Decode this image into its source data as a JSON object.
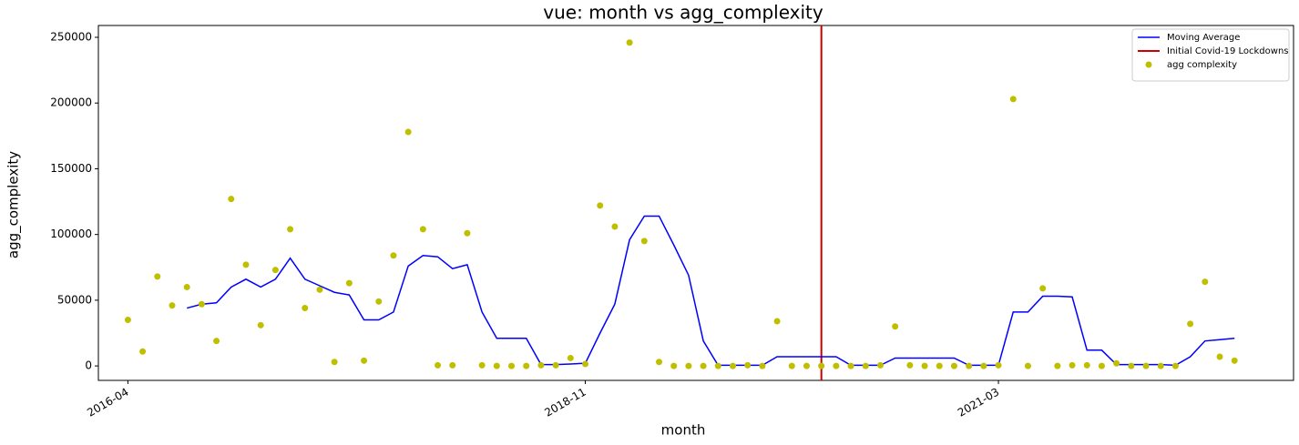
{
  "chart_data": {
    "type": "scatter",
    "title": "vue: month vs agg_complexity",
    "xlabel": "month",
    "ylabel": "agg_complexity",
    "x": [
      "2016-04",
      "2016-05",
      "2016-06",
      "2016-07",
      "2016-08",
      "2016-09",
      "2016-10",
      "2016-11",
      "2016-12",
      "2017-01",
      "2017-02",
      "2017-03",
      "2017-04",
      "2017-05",
      "2017-06",
      "2017-07",
      "2017-08",
      "2017-09",
      "2017-10",
      "2017-11",
      "2017-12",
      "2018-01",
      "2018-02",
      "2018-03",
      "2018-04",
      "2018-05",
      "2018-06",
      "2018-07",
      "2018-08",
      "2018-09",
      "2018-10",
      "2018-11",
      "2018-12",
      "2019-01",
      "2019-02",
      "2019-03",
      "2019-04",
      "2019-05",
      "2019-06",
      "2019-07",
      "2019-08",
      "2019-09",
      "2019-10",
      "2019-11",
      "2019-12",
      "2020-01",
      "2020-02",
      "2020-03",
      "2020-04",
      "2020-05",
      "2020-06",
      "2020-07",
      "2020-08",
      "2020-09",
      "2020-10",
      "2020-11",
      "2020-12",
      "2021-01",
      "2021-02",
      "2021-03",
      "2021-04",
      "2021-05",
      "2021-06",
      "2021-07",
      "2021-08",
      "2021-09",
      "2021-10",
      "2021-11",
      "2021-12",
      "2022-01",
      "2022-02",
      "2022-03",
      "2022-04",
      "2022-05",
      "2022-06",
      "2022-07"
    ],
    "series": [
      {
        "name": "Moving Average",
        "type": "line",
        "color": "#0000ff",
        "values": [
          null,
          null,
          null,
          null,
          44000,
          47000,
          48000,
          60000,
          66000,
          60000,
          66000,
          82000,
          66000,
          61000,
          56000,
          54000,
          35000,
          35000,
          41000,
          76000,
          84000,
          83000,
          74000,
          77000,
          41000,
          21000,
          21000,
          21000,
          1000,
          1000,
          1500,
          2000,
          25000,
          47000,
          96000,
          114000,
          114000,
          92000,
          69000,
          19000,
          500,
          500,
          500,
          500,
          7000,
          7000,
          7000,
          7000,
          7000,
          500,
          500,
          500,
          6000,
          6000,
          6000,
          6000,
          6000,
          500,
          500,
          500,
          41000,
          41000,
          53000,
          53000,
          52500,
          12000,
          12000,
          1000,
          1000,
          1000,
          1000,
          500,
          7000,
          19000,
          20000,
          21000
        ]
      },
      {
        "name": "agg complexity",
        "type": "scatter",
        "color": "#bfbf00",
        "values": [
          35000,
          11000,
          68000,
          46000,
          60000,
          47000,
          19000,
          127000,
          77000,
          31000,
          73000,
          104000,
          44000,
          58000,
          3000,
          63000,
          4000,
          49000,
          84000,
          178000,
          104000,
          500,
          500,
          101000,
          500,
          0,
          0,
          0,
          500,
          500,
          6000,
          1500,
          122000,
          106000,
          246000,
          95000,
          3000,
          0,
          0,
          0,
          0,
          0,
          500,
          0,
          34000,
          0,
          0,
          0,
          0,
          0,
          0,
          500,
          30000,
          500,
          0,
          0,
          0,
          0,
          0,
          500,
          203000,
          0,
          59000,
          0,
          500,
          500,
          0,
          2000,
          0,
          0,
          0,
          0,
          32000,
          64000,
          7000,
          4000
        ]
      }
    ],
    "vlines": [
      {
        "x": "2020-03",
        "name": "Initial Covid-19 Lockdowns",
        "color": "#cc0000"
      }
    ],
    "xlim": [
      "2016-02",
      "2022-11"
    ],
    "xticks": [
      "2016-04",
      "2018-11",
      "2021-03"
    ],
    "ylim": [
      -11000,
      259000
    ],
    "yticks": [
      0,
      50000,
      100000,
      150000,
      200000,
      250000
    ],
    "legend": "upper right"
  }
}
